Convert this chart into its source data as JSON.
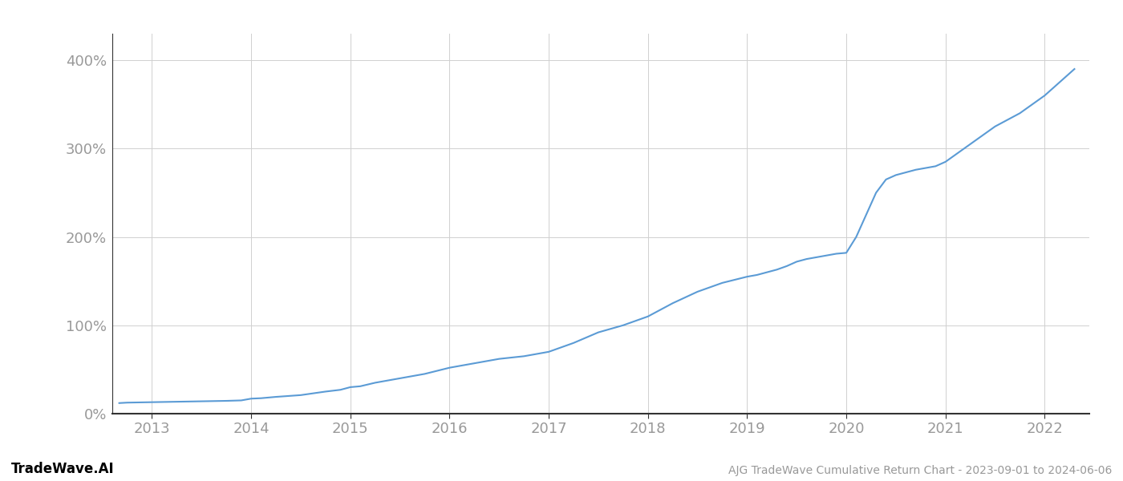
{
  "title": "AJG TradeWave Cumulative Return Chart - 2023-09-01 to 2024-06-06",
  "watermark": "TradeWave.AI",
  "line_color": "#5b9bd5",
  "background_color": "#ffffff",
  "grid_color": "#d0d0d0",
  "axis_label_color": "#999999",
  "spine_color": "#333333",
  "text_color": "#555555",
  "x_data": [
    2012.67,
    2012.75,
    2013.0,
    2013.1,
    2013.25,
    2013.5,
    2013.75,
    2013.9,
    2014.0,
    2014.1,
    2014.25,
    2014.5,
    2014.75,
    2014.9,
    2015.0,
    2015.1,
    2015.25,
    2015.5,
    2015.75,
    2016.0,
    2016.25,
    2016.5,
    2016.75,
    2017.0,
    2017.25,
    2017.5,
    2017.75,
    2018.0,
    2018.25,
    2018.5,
    2018.75,
    2019.0,
    2019.1,
    2019.2,
    2019.3,
    2019.4,
    2019.5,
    2019.6,
    2019.7,
    2019.8,
    2019.9,
    2020.0,
    2020.1,
    2020.2,
    2020.3,
    2020.4,
    2020.5,
    2020.6,
    2020.7,
    2020.8,
    2020.9,
    2021.0,
    2021.25,
    2021.5,
    2021.75,
    2022.0,
    2022.1,
    2022.2,
    2022.3
  ],
  "y_data": [
    12,
    12.5,
    13,
    13.2,
    13.5,
    14,
    14.5,
    15,
    17,
    17.5,
    19,
    21,
    25,
    27,
    30,
    31,
    35,
    40,
    45,
    52,
    57,
    62,
    65,
    70,
    80,
    92,
    100,
    110,
    125,
    138,
    148,
    155,
    157,
    160,
    163,
    167,
    172,
    175,
    177,
    179,
    181,
    182,
    200,
    225,
    250,
    265,
    270,
    273,
    276,
    278,
    280,
    285,
    305,
    325,
    340,
    360,
    370,
    380,
    390
  ],
  "ylim": [
    0,
    430
  ],
  "yticks": [
    0,
    100,
    200,
    300,
    400
  ],
  "xlim": [
    2012.6,
    2022.45
  ],
  "xticks": [
    2013,
    2014,
    2015,
    2016,
    2017,
    2018,
    2019,
    2020,
    2021,
    2022
  ],
  "figsize": [
    14,
    6
  ],
  "dpi": 100,
  "title_fontsize": 10,
  "tick_fontsize": 13,
  "watermark_fontsize": 12
}
